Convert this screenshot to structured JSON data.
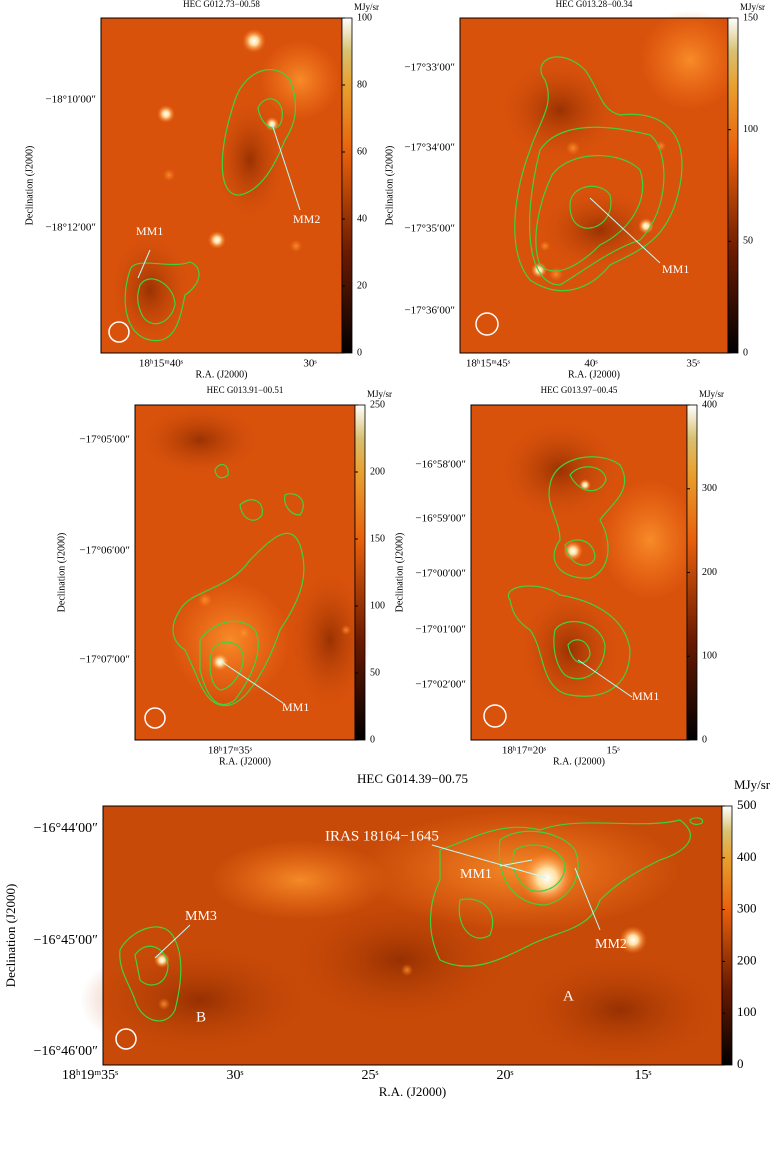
{
  "chart_data": [
    {
      "type": "image",
      "title": "HEC G012.73−00.58",
      "xlabel": "R.A. (J2000)",
      "ylabel": "Declination (J2000)",
      "colorbar_label": "MJy/sr",
      "clim": [
        0,
        100
      ],
      "cticks": [
        0,
        20,
        40,
        60,
        80,
        100
      ],
      "xtick_labels": [
        "18ʰ15ᵐ40ˢ",
        "30ˢ"
      ],
      "ytick_labels": [
        "−18°10′00″",
        "−18°12′00″"
      ],
      "annotations": [
        "MM1",
        "MM2"
      ]
    },
    {
      "type": "image",
      "title": "HEC G013.28−00.34",
      "xlabel": "R.A. (J2000)",
      "ylabel": "Declination (J2000)",
      "colorbar_label": "MJy/sr",
      "clim": [
        0,
        150
      ],
      "cticks": [
        0,
        50,
        100,
        150
      ],
      "xtick_labels": [
        "18ʰ15ᵐ45ˢ",
        "40ˢ",
        "35ˢ"
      ],
      "ytick_labels": [
        "−17°33′00″",
        "−17°34′00″",
        "−17°35′00″",
        "−17°36′00″"
      ],
      "annotations": [
        "MM1"
      ]
    },
    {
      "type": "image",
      "title": "HEC G013.91−00.51",
      "xlabel": "R.A. (J2000)",
      "ylabel": "Declination (J2000)",
      "colorbar_label": "MJy/sr",
      "clim": [
        0,
        250
      ],
      "cticks": [
        0,
        50,
        100,
        150,
        200,
        250
      ],
      "xtick_labels": [
        "18ʰ17ᵐ35ˢ"
      ],
      "ytick_labels": [
        "−17°05′00″",
        "−17°06′00″",
        "−17°07′00″"
      ],
      "annotations": [
        "MM1"
      ]
    },
    {
      "type": "image",
      "title": "HEC G013.97−00.45",
      "xlabel": "R.A. (J2000)",
      "ylabel": "Declination (J2000)",
      "colorbar_label": "MJy/sr",
      "clim": [
        0,
        400
      ],
      "cticks": [
        0,
        100,
        200,
        300,
        400
      ],
      "xtick_labels": [
        "18ʰ17ᵐ20ˢ",
        "15ˢ"
      ],
      "ytick_labels": [
        "−16°58′00″",
        "−16°59′00″",
        "−17°00′00″",
        "−17°01′00″",
        "−17°02′00″"
      ],
      "annotations": [
        "MM1"
      ]
    },
    {
      "type": "image",
      "title": "HEC G014.39−00.75",
      "xlabel": "R.A. (J2000)",
      "ylabel": "Declination (J2000)",
      "colorbar_label": "MJy/sr",
      "clim": [
        0,
        500
      ],
      "cticks": [
        0,
        100,
        200,
        300,
        400,
        500
      ],
      "xtick_labels": [
        "18ʰ19ᵐ35ˢ",
        "30ˢ",
        "25ˢ",
        "20ˢ",
        "15ˢ"
      ],
      "ytick_labels": [
        "−16°44′00″",
        "−16°45′00″",
        "−16°46′00″"
      ],
      "annotations": [
        "IRAS 18164−1645",
        "MM1",
        "MM2",
        "MM3",
        "A",
        "B"
      ]
    }
  ]
}
